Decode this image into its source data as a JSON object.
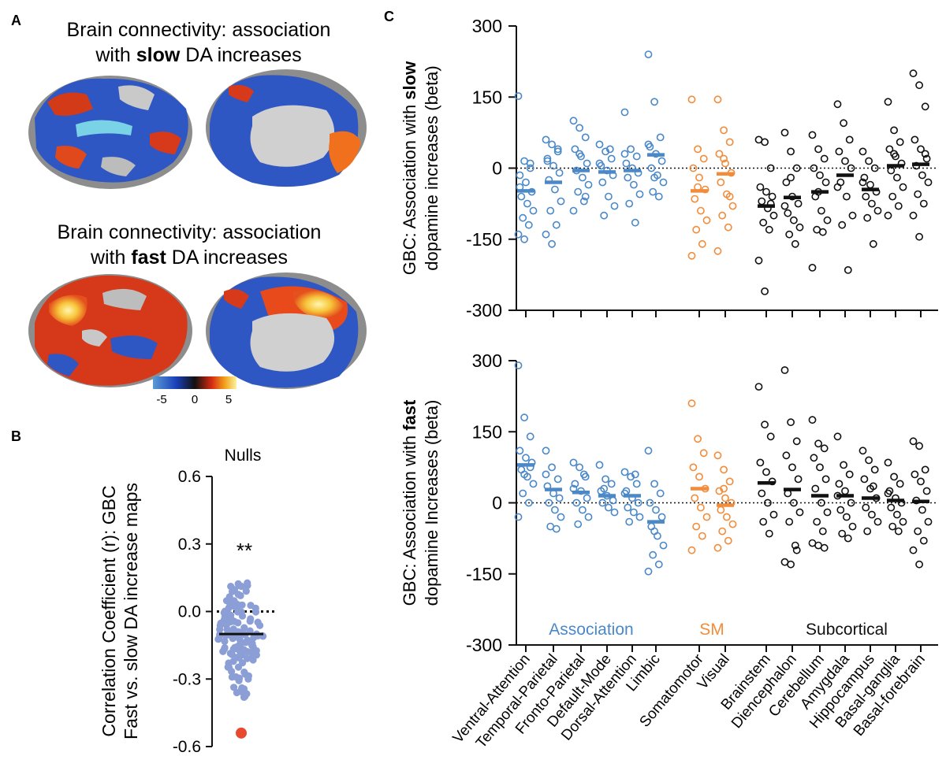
{
  "panels": {
    "a": {
      "label": "A",
      "slow_title": {
        "line1": "Brain connectivity: association",
        "pre": "with ",
        "bold": "slow",
        "post": " DA increases"
      },
      "fast_title": {
        "line1": "Brain connectivity: association",
        "pre": "with ",
        "bold": "fast",
        "post": " DA increases"
      },
      "colorbar": {
        "ticks": [
          "-5",
          "0",
          "5"
        ]
      }
    },
    "b": {
      "label": "B"
    },
    "c": {
      "label": "C"
    }
  },
  "colors": {
    "association": "#4a88c8",
    "sm": "#f28c3a",
    "subcortical": "#111111",
    "nulls": "#8c9ed6",
    "observed": "#e84a2f"
  },
  "chart_data": [
    {
      "id": "nulls",
      "type": "scatter",
      "title": "Nulls",
      "ylabel_line1": "Correlation Coefficient (r): GBC",
      "ylabel_line2": "Fast vs. slow DA increase maps",
      "ylim": [
        -0.6,
        0.6
      ],
      "yticks": [
        "0.6",
        "0.3",
        "0.0",
        "-0.3",
        "-0.6"
      ],
      "null_median": -0.1,
      "null_range": [
        -0.39,
        0.14
      ],
      "null_count": 140,
      "observed_r": -0.54,
      "significance": "**"
    },
    {
      "id": "slow",
      "type": "scatter",
      "ylabel_pre": "GBC: Association with ",
      "ylabel_bold": "slow",
      "ylabel_line2": "dopamine increases (beta)",
      "ylim": [
        -300,
        300
      ],
      "yticks": [
        "300",
        "150",
        "0",
        "-150",
        "-300"
      ],
      "categories": [
        "Ventral-Attention",
        "Temporal-Parietal",
        "Fronto-Parietal",
        "Default-Mode",
        "Dorsal-Attention",
        "Limbic",
        "Somatomotor",
        "Visual",
        "Brainstem",
        "Diencephalon",
        "Cerebellum",
        "Amygdala",
        "Hippocampus",
        "Basal-ganglia",
        "Basal-forebrain"
      ],
      "groups": [
        "association",
        "association",
        "association",
        "association",
        "association",
        "association",
        "sm",
        "sm",
        "subcortical",
        "subcortical",
        "subcortical",
        "subcortical",
        "subcortical",
        "subcortical",
        "subcortical"
      ],
      "medians": [
        -48,
        -30,
        -5,
        -8,
        -5,
        28,
        -48,
        -12,
        -80,
        -62,
        -50,
        -15,
        -45,
        5,
        8
      ],
      "values": [
        [
          152,
          15,
          0,
          -15,
          -30,
          -50,
          -60,
          -75,
          -90,
          -105,
          -120,
          -140,
          -150,
          10,
          -40
        ],
        [
          60,
          50,
          35,
          15,
          5,
          -10,
          -25,
          -45,
          -70,
          -90,
          -120,
          -140,
          -160,
          40,
          20
        ],
        [
          100,
          85,
          65,
          40,
          25,
          10,
          -5,
          -20,
          -35,
          -50,
          -70,
          -90,
          30,
          -60
        ],
        [
          50,
          35,
          20,
          5,
          -5,
          -15,
          -30,
          -60,
          -80,
          -100,
          40,
          10
        ],
        [
          118,
          40,
          25,
          10,
          0,
          -10,
          -20,
          -35,
          -55,
          -75,
          -115,
          30
        ],
        [
          240,
          140,
          65,
          45,
          30,
          15,
          0,
          -15,
          -30,
          -50,
          -60,
          50,
          -20
        ],
        [
          145,
          40,
          20,
          0,
          -20,
          -45,
          -65,
          -90,
          -110,
          -130,
          -160,
          -185,
          -40
        ],
        [
          145,
          80,
          55,
          30,
          10,
          -10,
          -30,
          -55,
          -80,
          -100,
          -125,
          -175,
          20,
          -60
        ],
        [
          60,
          55,
          0,
          -40,
          -50,
          -60,
          -70,
          -85,
          -100,
          -115,
          -130,
          -195,
          -260,
          -75
        ],
        [
          75,
          35,
          0,
          -30,
          -60,
          -75,
          -95,
          -110,
          -125,
          -140,
          -160,
          -80,
          -20
        ],
        [
          70,
          40,
          20,
          0,
          -15,
          -30,
          -60,
          -90,
          -110,
          -130,
          -135,
          -210,
          -50
        ],
        [
          135,
          95,
          60,
          35,
          15,
          0,
          -30,
          -60,
          -100,
          -120,
          -215,
          -40
        ],
        [
          35,
          15,
          0,
          -20,
          -35,
          -50,
          -60,
          -75,
          -90,
          -105,
          -160,
          -30
        ],
        [
          140,
          80,
          55,
          40,
          25,
          10,
          -5,
          -20,
          -40,
          -60,
          -80,
          -100,
          30
        ],
        [
          200,
          175,
          130,
          60,
          40,
          20,
          5,
          -15,
          -30,
          -55,
          -75,
          -100,
          -145,
          30
        ]
      ]
    },
    {
      "id": "fast",
      "type": "scatter",
      "ylabel_pre": "GBC: Association with ",
      "ylabel_bold": "fast",
      "ylabel_line2": "dopamine Increases (beta)",
      "ylim": [
        -300,
        300
      ],
      "yticks": [
        "300",
        "150",
        "0",
        "-150",
        "-300"
      ],
      "group_labels": {
        "association": "Association",
        "sm": "SM",
        "subcortical": "Subcortical"
      },
      "categories": [
        "Ventral-Attention",
        "Temporal-Parietal",
        "Fronto-Parietal",
        "Default-Mode",
        "Dorsal-Attention",
        "Limbic",
        "Somatomotor",
        "Visual",
        "Brainstem",
        "Diencephalon",
        "Cerebellum",
        "Amygdala",
        "Hippocampus",
        "Basal-ganglia",
        "Basal-forebrain"
      ],
      "groups": [
        "association",
        "association",
        "association",
        "association",
        "association",
        "association",
        "sm",
        "sm",
        "subcortical",
        "subcortical",
        "subcortical",
        "subcortical",
        "subcortical",
        "subcortical",
        "subcortical"
      ],
      "medians": [
        80,
        28,
        22,
        15,
        15,
        -40,
        30,
        -5,
        42,
        28,
        15,
        15,
        10,
        5,
        3
      ],
      "values": [
        [
          290,
          180,
          140,
          110,
          95,
          85,
          70,
          55,
          40,
          20,
          0,
          -30,
          60,
          75
        ],
        [
          110,
          75,
          50,
          35,
          20,
          10,
          0,
          -15,
          -30,
          -50,
          -55,
          60
        ],
        [
          85,
          75,
          55,
          40,
          25,
          10,
          0,
          -15,
          -30,
          -45,
          60,
          30
        ],
        [
          80,
          50,
          40,
          25,
          15,
          5,
          0,
          -10,
          -20,
          30
        ],
        [
          65,
          55,
          40,
          25,
          10,
          0,
          -10,
          -20,
          -30,
          -40,
          60,
          20
        ],
        [
          110,
          40,
          20,
          0,
          -15,
          -30,
          -50,
          -70,
          -90,
          -110,
          -130,
          -145,
          -60
        ],
        [
          210,
          135,
          105,
          75,
          55,
          30,
          10,
          -10,
          -30,
          -50,
          -70,
          -100
        ],
        [
          100,
          70,
          45,
          25,
          10,
          0,
          -15,
          -30,
          -45,
          -60,
          -80,
          -95,
          30
        ],
        [
          245,
          165,
          140,
          85,
          65,
          45,
          20,
          0,
          -25,
          -40,
          -65
        ],
        [
          280,
          170,
          130,
          100,
          75,
          50,
          20,
          0,
          -20,
          -40,
          -90,
          -125,
          -130,
          -100
        ],
        [
          175,
          125,
          115,
          95,
          75,
          50,
          30,
          0,
          -20,
          -40,
          -60,
          -85,
          -90,
          -95
        ],
        [
          140,
          80,
          60,
          40,
          25,
          0,
          -15,
          -30,
          -50,
          -65,
          -75,
          15
        ],
        [
          110,
          90,
          70,
          50,
          30,
          10,
          -10,
          -25,
          -40,
          -60,
          35
        ],
        [
          85,
          55,
          40,
          25,
          10,
          0,
          -10,
          -25,
          -40,
          -50,
          -60,
          20
        ],
        [
          130,
          120,
          70,
          60,
          45,
          25,
          5,
          -15,
          -40,
          -60,
          -80,
          -100,
          -130
        ]
      ]
    }
  ]
}
